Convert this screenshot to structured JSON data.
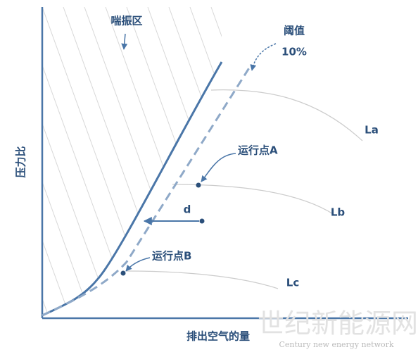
{
  "diagram": {
    "y_axis_label": "压力比",
    "x_axis_label": "排出空气的量",
    "surge_zone_label": "喘振区",
    "threshold_label": "阈值",
    "threshold_value": "10%",
    "point_a_label": "运行点A",
    "point_b_label": "运行点B",
    "distance_label": "d",
    "speed_lines": [
      "La",
      "Lb",
      "Lc"
    ],
    "watermark": {
      "title": "世纪新能源网",
      "subtitle": "Century new energy network"
    }
  }
}
